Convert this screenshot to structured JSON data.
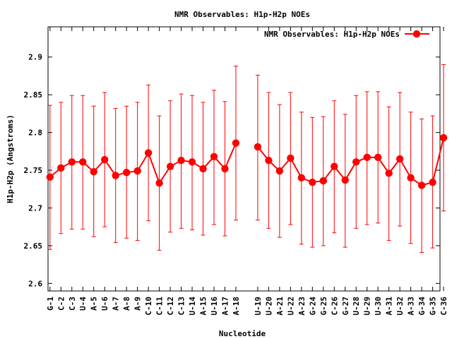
{
  "chart_data": {
    "type": "line",
    "title": "NMR Observables: H1p-H2p NOEs",
    "xlabel": "Nucleotide",
    "ylabel": "H1p-H2p (Angstroms)",
    "ylim": [
      2.59,
      2.94
    ],
    "yticks": [
      2.6,
      2.65,
      2.7,
      2.75,
      2.8,
      2.85,
      2.9
    ],
    "ytick_labels": [
      "2.6",
      "2.65",
      "2.7",
      "2.75",
      "2.8",
      "2.85",
      "2.9"
    ],
    "grid": false,
    "legend": "top-right",
    "series": [
      {
        "name": "NMR Observables: H1p-H2p NOEs",
        "color": "#ff0000",
        "marker": "circle",
        "error_bars": true,
        "segments": [
          {
            "categories": [
              "G-1",
              "C-2",
              "C-3",
              "U-4",
              "A-5",
              "U-6",
              "A-7",
              "A-8",
              "A-9",
              "C-10",
              "C-11",
              "C-12",
              "C-13",
              "U-14",
              "A-15",
              "U-16",
              "A-17",
              "A-18"
            ],
            "values": [
              2.741,
              2.753,
              2.761,
              2.761,
              2.748,
              2.764,
              2.743,
              2.747,
              2.749,
              2.773,
              2.733,
              2.755,
              2.763,
              2.761,
              2.752,
              2.768,
              2.752,
              2.786
            ],
            "err_low": [
              2.645,
              2.666,
              2.672,
              2.672,
              2.662,
              2.675,
              2.654,
              2.66,
              2.657,
              2.683,
              2.644,
              2.668,
              2.673,
              2.671,
              2.664,
              2.678,
              2.663,
              2.684
            ],
            "err_high": [
              2.836,
              2.84,
              2.849,
              2.849,
              2.835,
              2.853,
              2.832,
              2.835,
              2.84,
              2.863,
              2.822,
              2.842,
              2.851,
              2.849,
              2.84,
              2.856,
              2.841,
              2.888
            ]
          },
          {
            "categories": [
              "U-19",
              "U-20",
              "A-21",
              "U-22",
              "A-23",
              "G-24",
              "G-25",
              "C-26",
              "G-27",
              "U-28",
              "U-29",
              "U-30",
              "A-31",
              "U-32",
              "A-33",
              "G-34",
              "G-35",
              "C-36"
            ],
            "values": [
              2.781,
              2.763,
              2.749,
              2.766,
              2.74,
              2.734,
              2.736,
              2.755,
              2.737,
              2.761,
              2.767,
              2.767,
              2.746,
              2.765,
              2.74,
              2.73,
              2.734,
              2.793
            ],
            "err_low": [
              2.684,
              2.673,
              2.661,
              2.678,
              2.652,
              2.648,
              2.65,
              2.667,
              2.648,
              2.673,
              2.678,
              2.68,
              2.657,
              2.676,
              2.653,
              2.641,
              2.647,
              2.696
            ],
            "err_high": [
              2.876,
              2.853,
              2.837,
              2.853,
              2.827,
              2.82,
              2.821,
              2.842,
              2.824,
              2.849,
              2.854,
              2.854,
              2.834,
              2.853,
              2.827,
              2.818,
              2.822,
              2.89
            ]
          }
        ]
      }
    ]
  }
}
